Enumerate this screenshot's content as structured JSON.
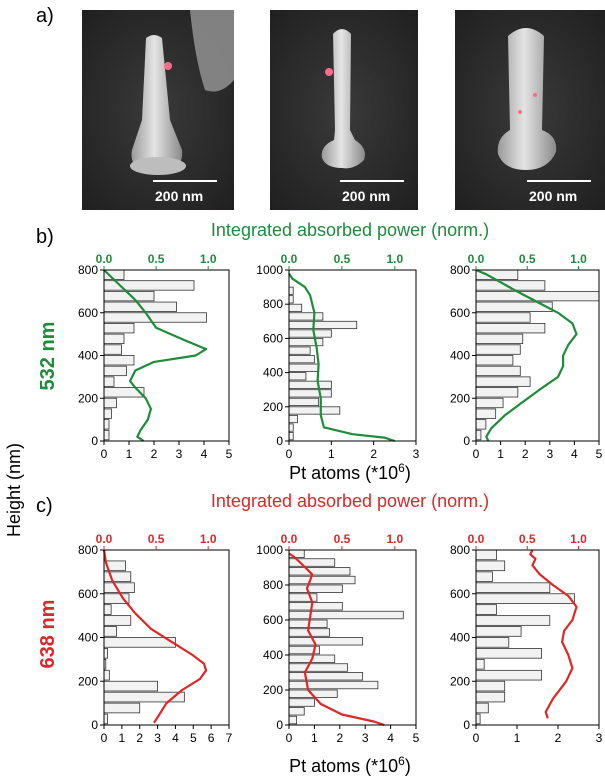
{
  "panel_labels": {
    "a": "a)",
    "b": "b)",
    "c": "c)"
  },
  "sem": {
    "scale_label": "200 nm"
  },
  "titles": {
    "b": "Integrated absorbed power (norm.)",
    "c": "Integrated absorbed power (norm.)"
  },
  "row_labels": {
    "b": "532 nm",
    "c": "638 nm"
  },
  "ylabel": "Height (nm)",
  "xlabel": "Pt atoms (*10",
  "xlabel_sup": "6",
  "xlabel_close": ")",
  "colors": {
    "green": "#1e8c3a",
    "red": "#dc2828",
    "bar_fill": "#f2f2f2",
    "bar_edge": "#333333"
  },
  "chart_data": [
    {
      "type": "bar",
      "row": "b",
      "col": 1,
      "title": "Integrated absorbed power (norm.)",
      "ylabel": "Height (nm)",
      "xlabel": "Pt atoms (*10^6)",
      "ylim": [
        0,
        800
      ],
      "xlim": [
        0,
        5
      ],
      "top_xlim": [
        0,
        1.2
      ],
      "yticks": [
        0,
        200,
        400,
        600,
        800
      ],
      "xticks": [
        0,
        1,
        2,
        3,
        4,
        5
      ],
      "top_xticks": [
        "0.0",
        "0.5",
        "1.0"
      ],
      "bin_width": 50,
      "bins": [
        {
          "y": 25,
          "v": 0.2
        },
        {
          "y": 75,
          "v": 0.2
        },
        {
          "y": 125,
          "v": 0.3
        },
        {
          "y": 175,
          "v": 0.5
        },
        {
          "y": 225,
          "v": 1.6
        },
        {
          "y": 275,
          "v": 0.4
        },
        {
          "y": 325,
          "v": 0.9
        },
        {
          "y": 375,
          "v": 1.2
        },
        {
          "y": 425,
          "v": 0.7
        },
        {
          "y": 475,
          "v": 0.8
        },
        {
          "y": 525,
          "v": 1.2
        },
        {
          "y": 575,
          "v": 4.1
        },
        {
          "y": 625,
          "v": 2.9
        },
        {
          "y": 675,
          "v": 2.0
        },
        {
          "y": 725,
          "v": 3.6
        },
        {
          "y": 775,
          "v": 0.8
        }
      ],
      "curve": {
        "name": "Integrated absorbed power (norm.)",
        "color": "#1e8c3a",
        "x": [
          0.38,
          0.32,
          0.35,
          0.42,
          0.45,
          0.4,
          0.3,
          0.25,
          0.3,
          0.48,
          0.88,
          0.98,
          0.78,
          0.5,
          0.4,
          0.3,
          0.15,
          0.0
        ],
        "y": [
          0,
          20,
          50,
          100,
          150,
          200,
          250,
          280,
          330,
          370,
          400,
          430,
          470,
          530,
          600,
          660,
          730,
          800
        ]
      }
    },
    {
      "type": "bar",
      "row": "b",
      "col": 2,
      "ylim": [
        0,
        1000
      ],
      "xlim": [
        0,
        3
      ],
      "top_xlim": [
        0,
        1.2
      ],
      "yticks": [
        0,
        200,
        400,
        600,
        800,
        1000
      ],
      "xticks": [
        0,
        1,
        2,
        3
      ],
      "top_xticks": [
        "0.0",
        "0.5",
        "1.0"
      ],
      "bin_width": 50,
      "bins": [
        {
          "y": 25,
          "v": 0.1
        },
        {
          "y": 75,
          "v": 0.1
        },
        {
          "y": 125,
          "v": 0.2
        },
        {
          "y": 175,
          "v": 1.2
        },
        {
          "y": 225,
          "v": 0.7
        },
        {
          "y": 275,
          "v": 1.0
        },
        {
          "y": 325,
          "v": 1.0
        },
        {
          "y": 375,
          "v": 0.4
        },
        {
          "y": 425,
          "v": 0.7
        },
        {
          "y": 475,
          "v": 0.6
        },
        {
          "y": 525,
          "v": 0.5
        },
        {
          "y": 575,
          "v": 0.8
        },
        {
          "y": 625,
          "v": 1.0
        },
        {
          "y": 675,
          "v": 1.6
        },
        {
          "y": 725,
          "v": 0.8
        },
        {
          "y": 775,
          "v": 0.3
        },
        {
          "y": 825,
          "v": 0.1
        },
        {
          "y": 875,
          "v": 0.1
        }
      ],
      "curve": {
        "name": "Integrated absorbed power (norm.)",
        "color": "#1e8c3a",
        "x": [
          1.0,
          0.9,
          0.6,
          0.33,
          0.3,
          0.3,
          0.27,
          0.28,
          0.26,
          0.23,
          0.24,
          0.2,
          0.15,
          0.03,
          0.0
        ],
        "y": [
          0,
          20,
          40,
          80,
          150,
          250,
          350,
          450,
          550,
          650,
          750,
          850,
          900,
          950,
          980
        ]
      }
    },
    {
      "type": "bar",
      "row": "b",
      "col": 3,
      "ylim": [
        0,
        800
      ],
      "xlim": [
        0,
        5
      ],
      "top_xlim": [
        0,
        1.2
      ],
      "yticks": [
        0,
        200,
        400,
        600,
        800
      ],
      "xticks": [
        0,
        1,
        2,
        3,
        4,
        5
      ],
      "top_xticks": [
        "0.0",
        "0.5",
        "1.0"
      ],
      "bin_width": 50,
      "bins": [
        {
          "y": 25,
          "v": 0.2
        },
        {
          "y": 75,
          "v": 0.4
        },
        {
          "y": 125,
          "v": 0.8
        },
        {
          "y": 175,
          "v": 1.1
        },
        {
          "y": 225,
          "v": 1.7
        },
        {
          "y": 275,
          "v": 2.2
        },
        {
          "y": 325,
          "v": 1.8
        },
        {
          "y": 375,
          "v": 1.5
        },
        {
          "y": 425,
          "v": 1.8
        },
        {
          "y": 475,
          "v": 1.9
        },
        {
          "y": 525,
          "v": 2.8
        },
        {
          "y": 575,
          "v": 2.2
        },
        {
          "y": 625,
          "v": 3.1
        },
        {
          "y": 675,
          "v": 5.0
        },
        {
          "y": 725,
          "v": 2.8
        },
        {
          "y": 775,
          "v": 1.7
        }
      ],
      "curve": {
        "name": "Integrated absorbed power (norm.)",
        "color": "#1e8c3a",
        "x": [
          0.12,
          0.1,
          0.15,
          0.28,
          0.45,
          0.62,
          0.8,
          0.85,
          0.85,
          0.9,
          0.98,
          0.94,
          0.8,
          0.6,
          0.4,
          0.25,
          0.1,
          0.0
        ],
        "y": [
          0,
          20,
          60,
          120,
          180,
          240,
          300,
          350,
          400,
          450,
          500,
          550,
          600,
          650,
          700,
          740,
          780,
          800
        ]
      }
    },
    {
      "type": "bar",
      "row": "c",
      "col": 1,
      "title": "Integrated absorbed power (norm.)",
      "ylim": [
        0,
        800
      ],
      "xlim": [
        0,
        7
      ],
      "top_xlim": [
        0,
        1.2
      ],
      "yticks": [
        0,
        200,
        400,
        600,
        800
      ],
      "xticks": [
        0,
        1,
        2,
        3,
        4,
        5,
        6,
        7
      ],
      "top_xticks": [
        "0.0",
        "0.5",
        "1.0"
      ],
      "bin_width": 50,
      "bins": [
        {
          "y": 25,
          "v": 0.2
        },
        {
          "y": 75,
          "v": 2.0
        },
        {
          "y": 125,
          "v": 4.5
        },
        {
          "y": 175,
          "v": 3.0
        },
        {
          "y": 225,
          "v": 0.3
        },
        {
          "y": 275,
          "v": 0.1
        },
        {
          "y": 325,
          "v": 0.2
        },
        {
          "y": 375,
          "v": 4.0
        },
        {
          "y": 425,
          "v": 0.7
        },
        {
          "y": 475,
          "v": 1.5
        },
        {
          "y": 525,
          "v": 0.4
        },
        {
          "y": 575,
          "v": 1.4
        },
        {
          "y": 625,
          "v": 1.7
        },
        {
          "y": 675,
          "v": 1.5
        },
        {
          "y": 725,
          "v": 1.2
        }
      ],
      "curve": {
        "name": "Integrated absorbed power (norm.)",
        "color": "#dc2828",
        "x": [
          0.48,
          0.52,
          0.6,
          0.75,
          0.92,
          0.98,
          0.96,
          0.85,
          0.65,
          0.45,
          0.3,
          0.18,
          0.08,
          0.02,
          0.0
        ],
        "y": [
          10,
          40,
          100,
          160,
          210,
          250,
          280,
          320,
          380,
          440,
          510,
          580,
          660,
          740,
          800
        ]
      }
    },
    {
      "type": "bar",
      "row": "c",
      "col": 2,
      "ylim": [
        0,
        1000
      ],
      "xlim": [
        0,
        5
      ],
      "top_xlim": [
        0,
        1.2
      ],
      "yticks": [
        0,
        200,
        400,
        600,
        800,
        1000
      ],
      "xticks": [
        0,
        1,
        2,
        3,
        4,
        5
      ],
      "top_xticks": [
        "0.0",
        "0.5",
        "1.0"
      ],
      "bin_width": 50,
      "bins": [
        {
          "y": 25,
          "v": 0.3
        },
        {
          "y": 75,
          "v": 0.6
        },
        {
          "y": 125,
          "v": 1.0
        },
        {
          "y": 175,
          "v": 1.9
        },
        {
          "y": 225,
          "v": 3.5
        },
        {
          "y": 275,
          "v": 2.9
        },
        {
          "y": 325,
          "v": 2.3
        },
        {
          "y": 375,
          "v": 1.8
        },
        {
          "y": 425,
          "v": 1.2
        },
        {
          "y": 475,
          "v": 2.9
        },
        {
          "y": 525,
          "v": 1.6
        },
        {
          "y": 575,
          "v": 1.5
        },
        {
          "y": 625,
          "v": 4.5
        },
        {
          "y": 675,
          "v": 2.1
        },
        {
          "y": 725,
          "v": 1.1
        },
        {
          "y": 775,
          "v": 2.1
        },
        {
          "y": 825,
          "v": 2.6
        },
        {
          "y": 875,
          "v": 2.4
        },
        {
          "y": 925,
          "v": 1.8
        },
        {
          "y": 975,
          "v": 0.6
        }
      ],
      "curve": {
        "name": "Integrated absorbed power (norm.)",
        "color": "#dc2828",
        "x": [
          0.9,
          0.8,
          0.5,
          0.3,
          0.18,
          0.15,
          0.22,
          0.25,
          0.18,
          0.2,
          0.22,
          0.17,
          0.22,
          0.12,
          0.05,
          0.0
        ],
        "y": [
          0,
          20,
          60,
          120,
          200,
          300,
          380,
          460,
          540,
          620,
          700,
          780,
          860,
          920,
          960,
          980
        ]
      }
    },
    {
      "type": "bar",
      "row": "c",
      "col": 3,
      "ylim": [
        0,
        800
      ],
      "xlim": [
        0,
        3
      ],
      "top_xlim": [
        0,
        1.2
      ],
      "yticks": [
        0,
        200,
        400,
        600,
        800
      ],
      "xticks": [
        0,
        1,
        2,
        3
      ],
      "top_xticks": [
        "0.0",
        "0.5",
        "1.0"
      ],
      "bin_width": 50,
      "bins": [
        {
          "y": 25,
          "v": 0.1
        },
        {
          "y": 75,
          "v": 0.3
        },
        {
          "y": 125,
          "v": 0.7
        },
        {
          "y": 175,
          "v": 0.7
        },
        {
          "y": 225,
          "v": 1.6
        },
        {
          "y": 275,
          "v": 0.2
        },
        {
          "y": 325,
          "v": 1.6
        },
        {
          "y": 375,
          "v": 0.8
        },
        {
          "y": 425,
          "v": 1.1
        },
        {
          "y": 475,
          "v": 1.8
        },
        {
          "y": 525,
          "v": 0.5
        },
        {
          "y": 575,
          "v": 2.4
        },
        {
          "y": 625,
          "v": 1.8
        },
        {
          "y": 675,
          "v": 0.4
        },
        {
          "y": 725,
          "v": 0.7
        },
        {
          "y": 775,
          "v": 0.5
        }
      ],
      "curve": {
        "name": "Integrated absorbed power (norm.)",
        "color": "#dc2828",
        "x": [
          0.7,
          0.68,
          0.75,
          0.88,
          0.94,
          0.9,
          0.84,
          0.86,
          0.94,
          0.98,
          0.9,
          0.75,
          0.62,
          0.55,
          0.58,
          0.53,
          0.55
        ],
        "y": [
          30,
          60,
          120,
          200,
          260,
          320,
          380,
          430,
          480,
          540,
          590,
          640,
          690,
          730,
          760,
          780,
          800
        ]
      }
    }
  ]
}
